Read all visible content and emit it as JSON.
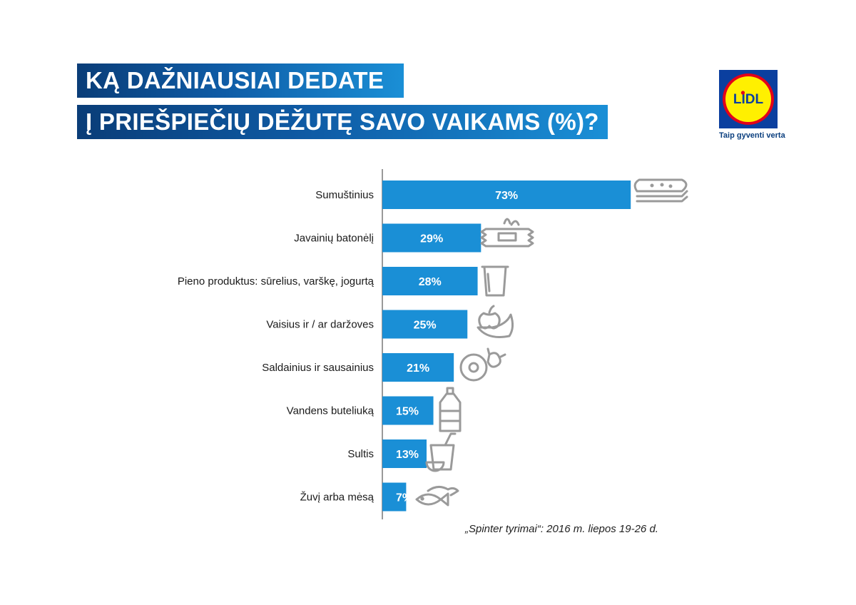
{
  "title": {
    "line1": "KĄ DAŽNIAUSIAI DEDATE",
    "line2": "Į PRIEŠPIEČIŲ DĖŽUTĘ SAVO VAIKAMS (%)?"
  },
  "logo": {
    "text": "LIDL",
    "tagline": "Taip gyventi verta"
  },
  "colors": {
    "bar": "#1a8fd6",
    "title_dark": "#0a3d78",
    "logo_blue": "#0b3f9f",
    "logo_yellow": "#fff000",
    "logo_red": "#e2001a",
    "icon": "#9a9a9a"
  },
  "chart_data": {
    "type": "bar",
    "orientation": "horizontal",
    "title": "KĄ DAŽNIAUSIAI DEDATE Į PRIEŠPIEČIŲ DĖŽUTĘ SAVO VAIKAMS (%)?",
    "xlabel": "",
    "ylabel": "",
    "xlim": [
      0,
      100
    ],
    "categories": [
      "Sumuštinius",
      "Javainių batonėlį",
      "Pieno produktus: sūrelius, varškę, jogurtą",
      "Vaisius ir / ar daržoves",
      "Saldainius ir sausainius",
      "Vandens buteliuką",
      "Sultis",
      "Žuvį arba mėsą"
    ],
    "values": [
      73,
      29,
      28,
      25,
      21,
      15,
      13,
      7
    ],
    "value_labels": [
      "73%",
      "29%",
      "28%",
      "25%",
      "21%",
      "15%",
      "13%",
      "7%"
    ],
    "icons": [
      "sandwich-icon",
      "cereal-bar-icon",
      "yogurt-cup-icon",
      "apple-banana-icon",
      "donut-candy-icon",
      "water-bottle-icon",
      "juice-cup-icon",
      "fish-meat-icon"
    ]
  },
  "source": "„Spinter tyrimai“: 2016 m. liepos 19-26 d."
}
